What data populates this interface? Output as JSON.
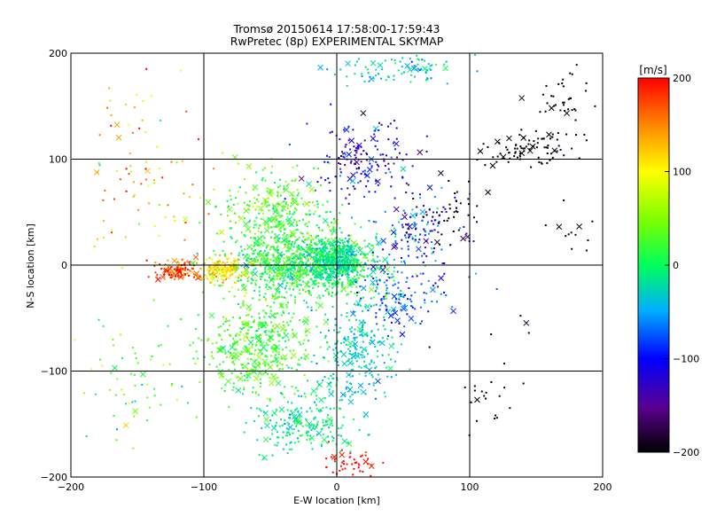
{
  "chart_data": {
    "type": "scatter",
    "title": "Tromsø 20150614 17:58:00-17:59:43",
    "subtitle": "RwPretec (8p) EXPERIMENTAL SKYMAP",
    "xlabel": "E-W location [km]",
    "ylabel": "N-S location [km]",
    "xlim": [
      -200,
      200
    ],
    "ylim": [
      -200,
      200
    ],
    "x_ticks": [
      -200,
      -100,
      0,
      100,
      200
    ],
    "y_ticks": [
      -200,
      -100,
      0,
      100,
      200
    ],
    "grid": true,
    "colorbar": {
      "label": "[m/s]",
      "range": [
        -200,
        200
      ],
      "ticks": [
        -200,
        -100,
        0,
        100,
        200
      ],
      "colormap": "rainbow (black-purple-blue-cyan-green-yellow-red)"
    },
    "markers": [
      "dot",
      "x"
    ],
    "clusters": [
      {
        "center": [
          -20,
          0
        ],
        "spread": [
          45,
          25
        ],
        "count": 900,
        "velocity": 10,
        "vspread": 25
      },
      {
        "center": [
          0,
          5
        ],
        "spread": [
          15,
          15
        ],
        "count": 350,
        "velocity": -15,
        "vspread": 20
      },
      {
        "center": [
          -120,
          -5
        ],
        "spread": [
          15,
          8
        ],
        "count": 120,
        "velocity": 175,
        "vspread": 25
      },
      {
        "center": [
          -85,
          -5
        ],
        "spread": [
          15,
          10
        ],
        "count": 150,
        "velocity": 110,
        "vspread": 25
      },
      {
        "center": [
          -60,
          -75
        ],
        "spread": [
          35,
          45
        ],
        "count": 450,
        "velocity": 25,
        "vspread": 20
      },
      {
        "center": [
          -45,
          45
        ],
        "spread": [
          35,
          35
        ],
        "count": 350,
        "velocity": 30,
        "vspread": 25
      },
      {
        "center": [
          15,
          -80
        ],
        "spread": [
          25,
          45
        ],
        "count": 250,
        "velocity": -30,
        "vspread": 20
      },
      {
        "center": [
          -25,
          -150
        ],
        "spread": [
          30,
          25
        ],
        "count": 200,
        "velocity": -10,
        "vspread": 20
      },
      {
        "center": [
          20,
          100
        ],
        "spread": [
          30,
          30
        ],
        "count": 160,
        "velocity": -115,
        "vspread": 30
      },
      {
        "center": [
          60,
          30
        ],
        "spread": [
          30,
          35
        ],
        "count": 150,
        "velocity": -90,
        "vspread": 40
      },
      {
        "center": [
          45,
          -30
        ],
        "spread": [
          30,
          25
        ],
        "count": 120,
        "velocity": -75,
        "vspread": 25
      },
      {
        "center": [
          145,
          110
        ],
        "spread": [
          35,
          15
        ],
        "count": 90,
        "velocity": -200,
        "vspread": 5
      },
      {
        "center": [
          170,
          155
        ],
        "spread": [
          20,
          25
        ],
        "count": 35,
        "velocity": -200,
        "vspread": 5
      },
      {
        "center": [
          175,
          35
        ],
        "spread": [
          15,
          20
        ],
        "count": 12,
        "velocity": -200,
        "vspread": 5
      },
      {
        "center": [
          80,
          50
        ],
        "spread": [
          25,
          30
        ],
        "count": 45,
        "velocity": -190,
        "vspread": 10
      },
      {
        "center": [
          10,
          -185
        ],
        "spread": [
          18,
          12
        ],
        "count": 45,
        "velocity": 195,
        "vspread": 10
      },
      {
        "center": [
          45,
          185
        ],
        "spread": [
          35,
          12
        ],
        "count": 90,
        "velocity": -30,
        "vspread": 20
      },
      {
        "center": [
          -145,
          80
        ],
        "spread": [
          40,
          70
        ],
        "count": 90,
        "velocity": 120,
        "vspread": 60
      },
      {
        "center": [
          -150,
          -110
        ],
        "spread": [
          35,
          50
        ],
        "count": 60,
        "velocity": 40,
        "vspread": 40
      },
      {
        "center": [
          110,
          -110
        ],
        "spread": [
          30,
          50
        ],
        "count": 25,
        "velocity": -200,
        "vspread": 10
      }
    ]
  }
}
